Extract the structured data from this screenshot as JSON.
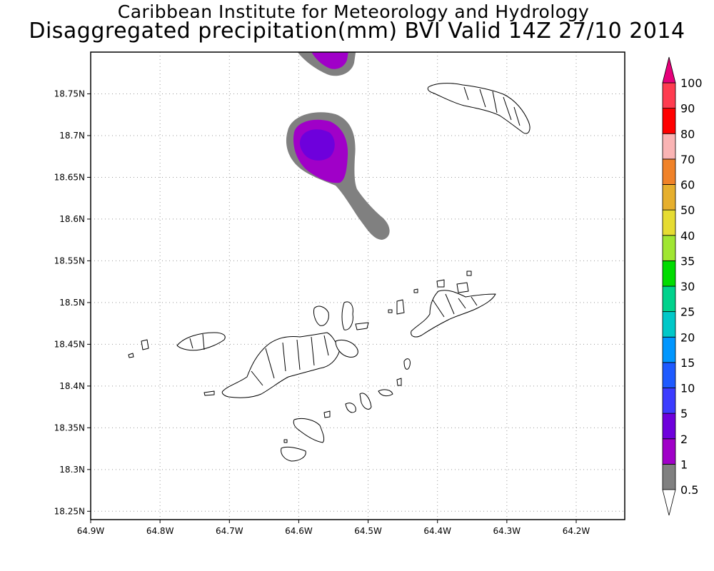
{
  "title": {
    "line1": "Caribbean Institute for Meteorology and Hydrology",
    "line2": "Disaggregated precipitation(mm) BVI Valid 14Z 27/10 2014"
  },
  "map": {
    "lon_range": [
      -64.9,
      -64.13
    ],
    "lat_range": [
      18.24,
      18.8
    ],
    "lon_ticks": [
      {
        "value": -64.9,
        "label": "64.9W"
      },
      {
        "value": -64.8,
        "label": "64.8W"
      },
      {
        "value": -64.7,
        "label": "64.7W"
      },
      {
        "value": -64.6,
        "label": "64.6W"
      },
      {
        "value": -64.5,
        "label": "64.5W"
      },
      {
        "value": -64.4,
        "label": "64.4W"
      },
      {
        "value": -64.3,
        "label": "64.3W"
      },
      {
        "value": -64.2,
        "label": "64.2W"
      }
    ],
    "lat_ticks": [
      {
        "value": 18.25,
        "label": "18.25N"
      },
      {
        "value": 18.3,
        "label": "18.3N"
      },
      {
        "value": 18.35,
        "label": "18.35N"
      },
      {
        "value": 18.4,
        "label": "18.4N"
      },
      {
        "value": 18.45,
        "label": "18.45N"
      },
      {
        "value": 18.5,
        "label": "18.5N"
      },
      {
        "value": 18.55,
        "label": "18.55N"
      },
      {
        "value": 18.6,
        "label": "18.6N"
      },
      {
        "value": 18.65,
        "label": "18.65N"
      },
      {
        "value": 18.7,
        "label": "18.7N"
      },
      {
        "value": 18.75,
        "label": "18.75N"
      }
    ],
    "grid": "dotted",
    "precip_features": [
      {
        "name": "northern-precip-cell",
        "max_class_mm": "1-2"
      },
      {
        "name": "central-precip-cell",
        "max_class_mm": "2-5"
      }
    ]
  },
  "colorbar": {
    "levels": [
      "0.5",
      "1",
      "2",
      "5",
      "10",
      "15",
      "20",
      "25",
      "30",
      "35",
      "40",
      "50",
      "60",
      "70",
      "80",
      "90",
      "100"
    ],
    "colors": [
      "#808080",
      "#a000c8",
      "#6e00dc",
      "#3c3cff",
      "#1e5aff",
      "#0096ff",
      "#00c8c8",
      "#00d28c",
      "#00dc00",
      "#a0e632",
      "#e6dc32",
      "#e6af2d",
      "#f08228",
      "#fab4b4",
      "#ff0000",
      "#ff3c50"
    ],
    "over_color": "#e6007a",
    "under_color": "#ffffff"
  }
}
